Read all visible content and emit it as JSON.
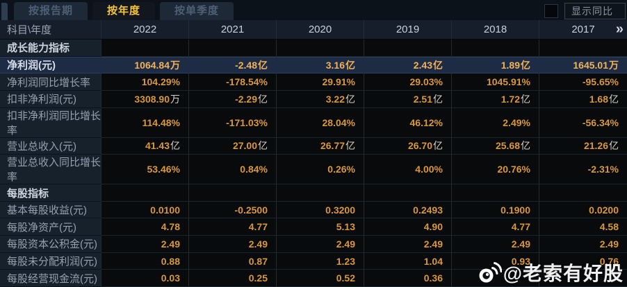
{
  "tabs": [
    {
      "label": "按报告期",
      "active": false
    },
    {
      "label": "按年度",
      "active": true
    },
    {
      "label": "按单季度",
      "active": false
    }
  ],
  "controls": {
    "yoy_checkbox_checked": false,
    "yoy_label": "显示同比"
  },
  "table": {
    "corner_label": "科目\\年度",
    "columns": [
      "2022",
      "2021",
      "2020",
      "2019",
      "2018",
      "2017"
    ],
    "more_icon": "»",
    "rows": [
      {
        "type": "section",
        "label": "成长能力指标",
        "values": [
          "",
          "",
          "",
          "",
          "",
          ""
        ]
      },
      {
        "type": "highlight",
        "label": "净利润(元)",
        "values": [
          "1064.84万",
          "-2.48亿",
          "3.16亿",
          "2.43亿",
          "1.89亿",
          "1645.01万"
        ]
      },
      {
        "type": "data",
        "label": "净利润同比增长率",
        "values": [
          "104.29%",
          "-178.54%",
          "29.91%",
          "29.03%",
          "1045.91%",
          "-95.65%"
        ]
      },
      {
        "type": "data",
        "label": "扣非净利润(元)",
        "values": [
          "3308.90万",
          "-2.29亿",
          "3.22亿",
          "2.51亿",
          "1.72亿",
          "1.68亿"
        ]
      },
      {
        "type": "data",
        "label": "扣非净利润同比增长率",
        "values": [
          "114.48%",
          "-171.03%",
          "28.04%",
          "46.12%",
          "2.49%",
          "-56.34%"
        ]
      },
      {
        "type": "data",
        "label": "营业总收入(元)",
        "values": [
          "41.43亿",
          "27.00亿",
          "26.77亿",
          "26.70亿",
          "25.68亿",
          "21.26亿"
        ]
      },
      {
        "type": "data",
        "label": "营业总收入同比增长率",
        "values": [
          "53.46%",
          "0.84%",
          "0.26%",
          "4.00%",
          "20.76%",
          "-2.31%"
        ]
      },
      {
        "type": "section",
        "label": "每股指标",
        "values": [
          "",
          "",
          "",
          "",
          "",
          ""
        ]
      },
      {
        "type": "data",
        "label": "基本每股收益(元)",
        "values": [
          "0.0100",
          "-0.2500",
          "0.3200",
          "0.2493",
          "0.1900",
          "0.0200"
        ]
      },
      {
        "type": "data",
        "label": "每股净资产(元)",
        "values": [
          "4.78",
          "4.77",
          "5.13",
          "4.90",
          "4.77",
          "4.58"
        ]
      },
      {
        "type": "data",
        "label": "每股资本公积金(元)",
        "values": [
          "2.49",
          "2.49",
          "2.49",
          "2.49",
          "2.49",
          "2.49"
        ]
      },
      {
        "type": "data",
        "label": "每股未分配利润(元)",
        "values": [
          "0.88",
          "0.87",
          "1.23",
          "1.04",
          "0.93",
          "0.76"
        ]
      },
      {
        "type": "data",
        "label": "每股经营现金流(元)",
        "values": [
          "0.03",
          "0.25",
          "0.52",
          "0.36",
          "",
          ""
        ]
      }
    ]
  },
  "watermark": {
    "icon": "weibo-icon",
    "text": "@老索有好股"
  },
  "colors": {
    "active_tab_text": "#f5c534",
    "value_orange": "#d9983c",
    "highlight_value_gold": "#f2b356",
    "highlight_row_bg": "#1e2b45",
    "label_column_bg": "#17212c"
  }
}
